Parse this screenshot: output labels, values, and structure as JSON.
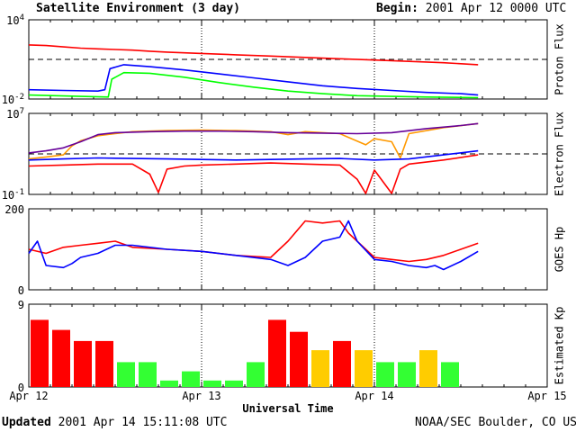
{
  "header": {
    "title": "Satellite Environment (3 day)",
    "begin_label": "Begin:",
    "begin_value": "2001 Apr 12 0000 UTC"
  },
  "footer": {
    "updated_label": "Updated",
    "updated_value": "2001 Apr 14 15:11:08 UTC",
    "credit": "NOAA/SEC Boulder, CO USA"
  },
  "colors": {
    "red": "#ff0000",
    "blue": "#0000ff",
    "green": "#00ff00",
    "orange": "#ff9900",
    "purple": "#660099",
    "kp_red": "#ff0000",
    "kp_yellow": "#ffcc00",
    "kp_green": "#33ff33"
  },
  "chart_data": [
    {
      "type": "line",
      "panel": "proton",
      "ylabel": "Proton Flux",
      "yscale": "log",
      "ylim_exp": [
        -2,
        4
      ],
      "ytick_labels": [
        {
          "base": "10",
          "exp": "4",
          "value_exp": 4
        },
        {
          "base": "10",
          "exp": "-2",
          "value_exp": -2
        }
      ],
      "threshold_exp": 1,
      "x_range_days": [
        0,
        3
      ],
      "series": [
        {
          "color": "red",
          "x": [
            0,
            0.1,
            0.2,
            0.3,
            0.4,
            0.5,
            0.6,
            0.7,
            0.8,
            1.0,
            1.2,
            1.4,
            1.6,
            1.8,
            2.0,
            2.2,
            2.4,
            2.6
          ],
          "y": [
            2.1,
            2.05,
            1.95,
            1.85,
            1.8,
            1.75,
            1.7,
            1.62,
            1.55,
            1.45,
            1.35,
            1.25,
            1.15,
            1.05,
            0.95,
            0.85,
            0.75,
            0.6
          ]
        },
        {
          "color": "blue",
          "x": [
            0,
            0.2,
            0.4,
            0.44,
            0.47,
            0.55,
            0.7,
            0.9,
            1.1,
            1.3,
            1.5,
            1.7,
            1.9,
            2.1,
            2.3,
            2.5,
            2.6
          ],
          "y": [
            -1.3,
            -1.35,
            -1.4,
            -1.3,
            0.3,
            0.6,
            0.45,
            0.2,
            -0.1,
            -0.4,
            -0.7,
            -1.0,
            -1.2,
            -1.35,
            -1.5,
            -1.6,
            -1.7
          ]
        },
        {
          "color": "green",
          "x": [
            0,
            0.3,
            0.46,
            0.48,
            0.55,
            0.7,
            0.9,
            1.1,
            1.3,
            1.5,
            1.7,
            1.9,
            2.1,
            2.3,
            2.6
          ],
          "y": [
            -1.7,
            -1.8,
            -1.85,
            -0.5,
            0.0,
            -0.05,
            -0.35,
            -0.75,
            -1.1,
            -1.4,
            -1.6,
            -1.75,
            -1.8,
            -1.85,
            -1.9
          ]
        }
      ]
    },
    {
      "type": "line",
      "panel": "electron",
      "ylabel": "Electron Flux",
      "yscale": "log",
      "ylim_exp": [
        -1,
        7
      ],
      "ytick_labels": [
        {
          "base": "10",
          "exp": "7",
          "value_exp": 7
        },
        {
          "base": "10",
          "exp": "-1",
          "value_exp": -1
        }
      ],
      "threshold_exp": 3,
      "x_range_days": [
        0,
        3
      ],
      "series": [
        {
          "color": "orange",
          "x": [
            0,
            0.1,
            0.2,
            0.25,
            0.3,
            0.4,
            0.5,
            0.6,
            0.8,
            1.0,
            1.2,
            1.4,
            1.5,
            1.6,
            1.8,
            1.95,
            2.0,
            2.1,
            2.15,
            2.2,
            2.4,
            2.6
          ],
          "y": [
            2.5,
            2.7,
            2.9,
            3.8,
            4.3,
            4.8,
            5.0,
            5.2,
            5.3,
            5.35,
            5.3,
            5.2,
            4.9,
            5.2,
            5.0,
            3.9,
            4.5,
            4.2,
            2.6,
            5.0,
            5.6,
            6.0
          ]
        },
        {
          "color": "purple",
          "x": [
            0,
            0.1,
            0.2,
            0.3,
            0.4,
            0.5,
            0.7,
            0.9,
            1.1,
            1.3,
            1.5,
            1.7,
            1.9,
            2.1,
            2.3,
            2.5,
            2.6
          ],
          "y": [
            3.1,
            3.3,
            3.6,
            4.2,
            4.9,
            5.1,
            5.2,
            5.25,
            5.25,
            5.2,
            5.1,
            5.05,
            5.0,
            5.1,
            5.5,
            5.8,
            6.0
          ]
        },
        {
          "color": "blue",
          "x": [
            0,
            0.2,
            0.4,
            0.6,
            0.8,
            1.0,
            1.2,
            1.4,
            1.6,
            1.8,
            2.0,
            2.2,
            2.4,
            2.6
          ],
          "y": [
            2.4,
            2.5,
            2.6,
            2.55,
            2.5,
            2.45,
            2.4,
            2.45,
            2.5,
            2.55,
            2.4,
            2.5,
            2.9,
            3.3
          ]
        },
        {
          "color": "red",
          "x": [
            0,
            0.2,
            0.4,
            0.6,
            0.7,
            0.75,
            0.8,
            0.9,
            1.0,
            1.2,
            1.4,
            1.6,
            1.8,
            1.9,
            1.95,
            2.0,
            2.1,
            2.15,
            2.2,
            2.4,
            2.6
          ],
          "y": [
            1.8,
            1.9,
            2.0,
            2.0,
            1.0,
            -0.8,
            1.5,
            1.8,
            1.9,
            2.0,
            2.1,
            2.0,
            1.9,
            0.5,
            -0.9,
            1.4,
            -0.9,
            1.5,
            2.0,
            2.4,
            2.9
          ]
        }
      ]
    },
    {
      "type": "line",
      "panel": "hp",
      "ylabel": "GOES Hp",
      "ylim": [
        0,
        200
      ],
      "ytick_labels": [
        {
          "text": "200",
          "value": 200
        },
        {
          "text": "0",
          "value": 0
        }
      ],
      "x_range_days": [
        0,
        3
      ],
      "series": [
        {
          "color": "red",
          "x": [
            0,
            0.1,
            0.2,
            0.3,
            0.4,
            0.5,
            0.6,
            0.8,
            1.0,
            1.2,
            1.4,
            1.5,
            1.6,
            1.7,
            1.8,
            1.85,
            1.9,
            2.0,
            2.1,
            2.2,
            2.3,
            2.4,
            2.5,
            2.6
          ],
          "y": [
            100,
            90,
            105,
            110,
            115,
            120,
            105,
            100,
            95,
            85,
            80,
            120,
            170,
            165,
            170,
            140,
            120,
            80,
            75,
            70,
            75,
            85,
            100,
            115
          ]
        },
        {
          "color": "blue",
          "x": [
            0,
            0.05,
            0.1,
            0.2,
            0.25,
            0.3,
            0.4,
            0.5,
            0.6,
            0.8,
            1.0,
            1.2,
            1.4,
            1.5,
            1.6,
            1.7,
            1.8,
            1.85,
            1.9,
            2.0,
            2.1,
            2.2,
            2.3,
            2.35,
            2.4,
            2.5,
            2.6
          ],
          "y": [
            90,
            120,
            60,
            55,
            65,
            80,
            90,
            110,
            110,
            100,
            95,
            85,
            75,
            60,
            80,
            120,
            130,
            170,
            120,
            75,
            70,
            60,
            55,
            60,
            50,
            70,
            95
          ]
        }
      ]
    },
    {
      "type": "bar",
      "panel": "kp",
      "ylabel": "Estimated Kp",
      "ylim": [
        0,
        9
      ],
      "ytick_labels": [
        {
          "text": "9",
          "value": 9
        },
        {
          "text": "0",
          "value": 0
        }
      ],
      "bar_width_hours": 3,
      "values": [
        7.3,
        6.2,
        5.0,
        5.0,
        2.7,
        2.7,
        0.7,
        1.7,
        0.7,
        0.7,
        2.7,
        7.3,
        6.0,
        4.0,
        5.0,
        4.0,
        2.7,
        2.7,
        4.0,
        2.7
      ],
      "bar_colors": [
        "kp_red",
        "kp_red",
        "kp_red",
        "kp_red",
        "kp_green",
        "kp_green",
        "kp_green",
        "kp_green",
        "kp_green",
        "kp_green",
        "kp_green",
        "kp_red",
        "kp_red",
        "kp_yellow",
        "kp_red",
        "kp_yellow",
        "kp_green",
        "kp_green",
        "kp_yellow",
        "kp_green"
      ]
    }
  ],
  "x_axis": {
    "xlabel": "Universal Time",
    "x_range_days": [
      0,
      3
    ],
    "tick_labels": [
      {
        "text": "Apr 12",
        "value": 0
      },
      {
        "text": "Apr 13",
        "value": 1
      },
      {
        "text": "Apr 14",
        "value": 2
      },
      {
        "text": "Apr 15",
        "value": 3
      }
    ]
  }
}
